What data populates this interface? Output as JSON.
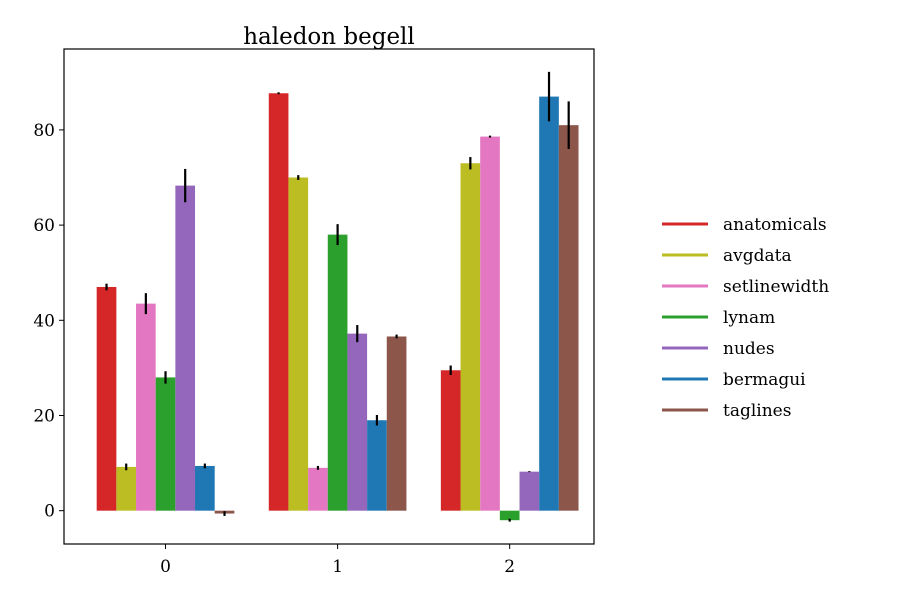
{
  "chart_data": {
    "type": "bar",
    "title": "haledon begell",
    "xlabel": "",
    "ylabel": "",
    "categories": [
      "0",
      "1",
      "2"
    ],
    "ylim": [
      -7,
      97
    ],
    "yticks": [
      0,
      20,
      40,
      60,
      80
    ],
    "grid": false,
    "legend_position": "right",
    "series": [
      {
        "name": "anatomicals",
        "color": "#d62728",
        "values": [
          47,
          87.7,
          29.5
        ],
        "errors": [
          0.7,
          0.2,
          1.0
        ]
      },
      {
        "name": "avgdata",
        "color": "#bcbd22",
        "values": [
          9.2,
          70,
          73
        ],
        "errors": [
          0.7,
          0.5,
          1.3
        ]
      },
      {
        "name": "setlinewidth",
        "color": "#e377c2",
        "values": [
          43.5,
          9,
          78.6
        ],
        "errors": [
          2.2,
          0.4,
          0.2
        ]
      },
      {
        "name": "lynam",
        "color": "#2ca02c",
        "values": [
          28,
          58,
          -2
        ],
        "errors": [
          1.3,
          2.2,
          0.3
        ]
      },
      {
        "name": "nudes",
        "color": "#9467bd",
        "values": [
          68.3,
          37.2,
          8.2
        ],
        "errors": [
          3.5,
          1.8,
          0.1
        ]
      },
      {
        "name": "bermagui",
        "color": "#1f77b4",
        "values": [
          9.4,
          19,
          87
        ],
        "errors": [
          0.5,
          1.1,
          5.2
        ]
      },
      {
        "name": "taglines",
        "color": "#8c564b",
        "values": [
          -0.6,
          36.6,
          81
        ],
        "errors": [
          0.5,
          0.4,
          5.0
        ]
      }
    ]
  }
}
